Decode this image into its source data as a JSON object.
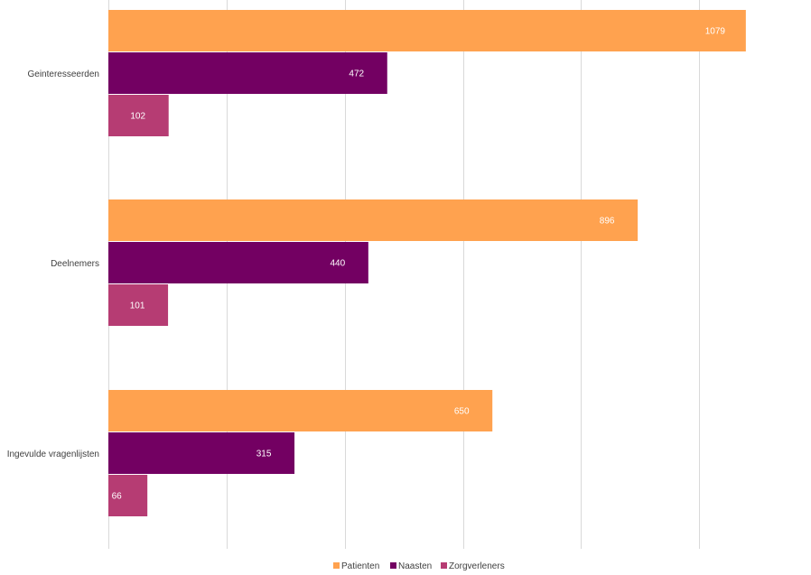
{
  "chart_data": {
    "type": "bar",
    "orientation": "horizontal",
    "categories": [
      "Geinteresseerden",
      "Deelnemers",
      "Ingevulde vragenlijsten"
    ],
    "series": [
      {
        "name": "Patienten",
        "values": [
          1079,
          896,
          650
        ],
        "color": "#FFA24F"
      },
      {
        "name": "Naasten",
        "values": [
          472,
          440,
          315
        ],
        "color": "#730062"
      },
      {
        "name": "Zorgverleners",
        "values": [
          102,
          101,
          66
        ],
        "color": "#B63C73"
      }
    ],
    "xlim": [
      0,
      1200
    ],
    "grid": true,
    "legend": "bottom",
    "data_labels": true,
    "title": "",
    "xlabel": "",
    "ylabel": ""
  }
}
